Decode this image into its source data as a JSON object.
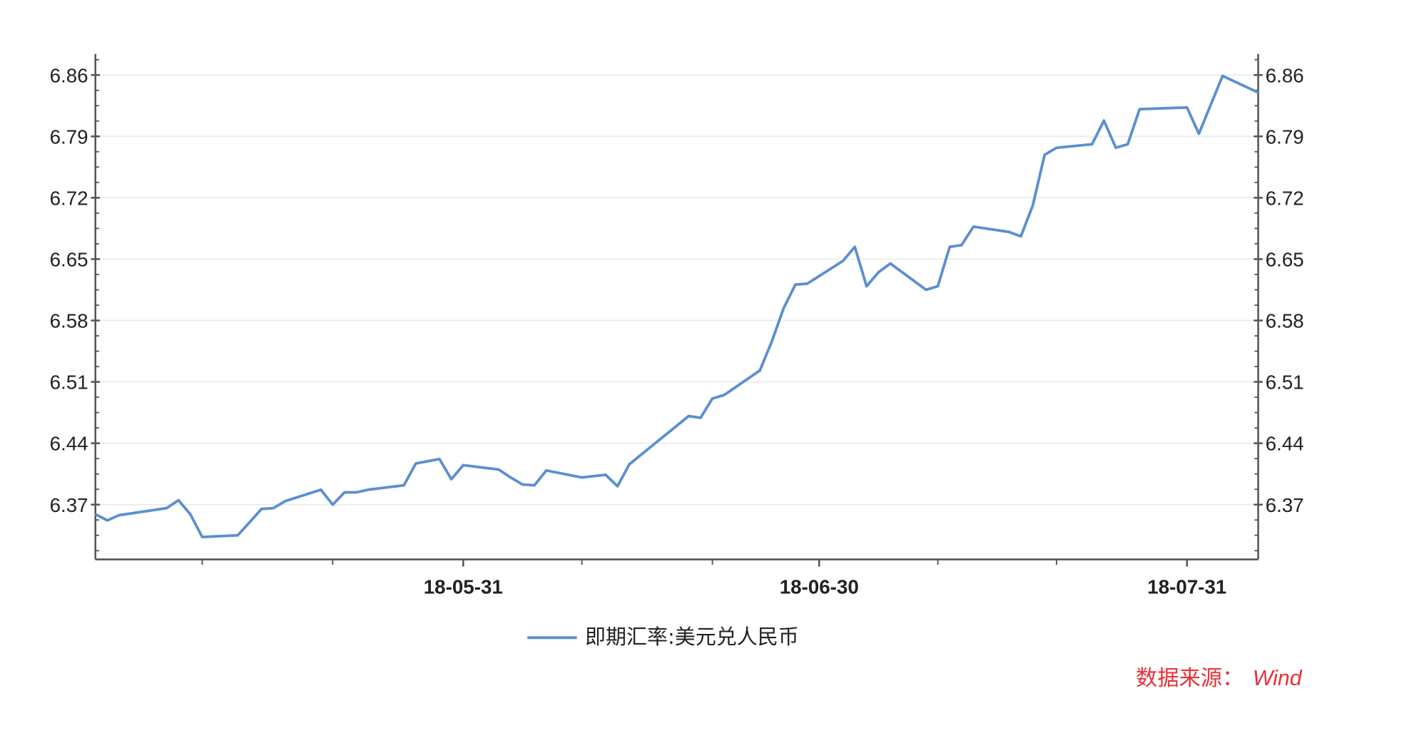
{
  "chart_data": {
    "type": "line",
    "title": "",
    "xlabel": "",
    "ylabel": "",
    "xlim": [
      "2018-04-30",
      "2018-08-06"
    ],
    "ylim": [
      6.3075,
      6.884
    ],
    "y_ticks": [
      6.37,
      6.44,
      6.51,
      6.58,
      6.65,
      6.72,
      6.79,
      6.86
    ],
    "y_tick_labels": [
      "6.37",
      "6.44",
      "6.51",
      "6.58",
      "6.65",
      "6.72",
      "6.79",
      "6.86"
    ],
    "y_axes": [
      "left",
      "right"
    ],
    "x_ticks": [
      "2018-05-31",
      "2018-06-30",
      "2018-07-31"
    ],
    "x_tick_labels": [
      "18-05-31",
      "18-06-30",
      "18-07-31"
    ],
    "x_minor_ticks": [
      "2018-05-09",
      "2018-05-20",
      "2018-06-10",
      "2018-06-21",
      "2018-07-10",
      "2018-07-20"
    ],
    "grid": true,
    "legend_placement": "bottom",
    "colors": {
      "series": "#5b8fd0",
      "grid": "#ececec",
      "axis": "#555555",
      "source": "#e8303a"
    },
    "series": [
      {
        "name": "即期汇率:美元兑人民币",
        "x": [
          "2018-04-30",
          "2018-05-01",
          "2018-05-02",
          "2018-05-04",
          "2018-05-06",
          "2018-05-07",
          "2018-05-08",
          "2018-05-09",
          "2018-05-12",
          "2018-05-13",
          "2018-05-14",
          "2018-05-15",
          "2018-05-16",
          "2018-05-19",
          "2018-05-20",
          "2018-05-21",
          "2018-05-22",
          "2018-05-23",
          "2018-05-26",
          "2018-05-27",
          "2018-05-29",
          "2018-05-30",
          "2018-05-31",
          "2018-06-03",
          "2018-06-04",
          "2018-06-05",
          "2018-06-06",
          "2018-06-07",
          "2018-06-10",
          "2018-06-12",
          "2018-06-13",
          "2018-06-14",
          "2018-06-19",
          "2018-06-20",
          "2018-06-21",
          "2018-06-22",
          "2018-06-25",
          "2018-06-26",
          "2018-06-27",
          "2018-06-28",
          "2018-06-29",
          "2018-07-02",
          "2018-07-03",
          "2018-07-04",
          "2018-07-05",
          "2018-07-06",
          "2018-07-09",
          "2018-07-10",
          "2018-07-11",
          "2018-07-12",
          "2018-07-13",
          "2018-07-16",
          "2018-07-17",
          "2018-07-18",
          "2018-07-19",
          "2018-07-20",
          "2018-07-23",
          "2018-07-24",
          "2018-07-25",
          "2018-07-26",
          "2018-07-27",
          "2018-07-31",
          "2018-08-01",
          "2018-08-03",
          "2018-08-06"
        ],
        "y": [
          6.359,
          6.352,
          6.358,
          6.362,
          6.366,
          6.375,
          6.359,
          6.333,
          6.335,
          6.35,
          6.365,
          6.366,
          6.374,
          6.387,
          6.37,
          6.384,
          6.384,
          6.387,
          6.392,
          6.417,
          6.422,
          6.399,
          6.415,
          6.41,
          6.401,
          6.393,
          6.392,
          6.409,
          6.401,
          6.404,
          6.391,
          6.416,
          6.471,
          6.469,
          6.491,
          6.495,
          6.523,
          6.556,
          6.594,
          6.621,
          6.622,
          6.648,
          6.664,
          6.619,
          6.635,
          6.645,
          6.615,
          6.619,
          6.664,
          6.666,
          6.687,
          6.681,
          6.676,
          6.711,
          6.769,
          6.777,
          6.781,
          6.808,
          6.777,
          6.781,
          6.821,
          6.823,
          6.793,
          6.859,
          6.84
        ]
      }
    ]
  },
  "legend": {
    "label": "即期汇率:美元兑人民币"
  },
  "source": {
    "label": "数据来源：",
    "name": "Wind"
  }
}
